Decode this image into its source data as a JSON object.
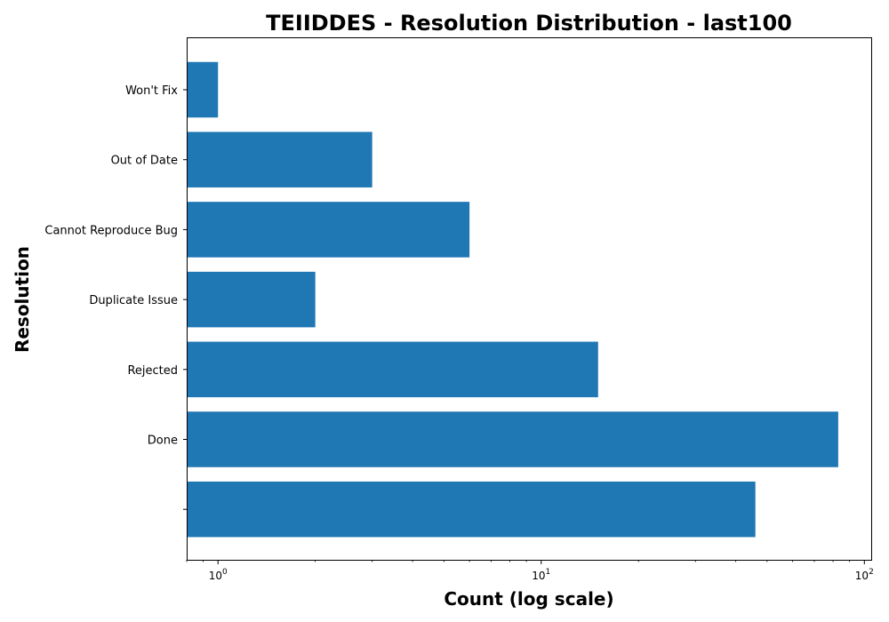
{
  "chart_data": {
    "type": "bar",
    "orientation": "horizontal",
    "title": "TEIIDDES - Resolution Distribution - last100",
    "xlabel": "Count (log scale)",
    "ylabel": "Resolution",
    "x_scale": "log",
    "xlim": [
      0.8,
      105
    ],
    "x_ticks": [
      {
        "value": 1,
        "base": "10",
        "exp": "0"
      },
      {
        "value": 10,
        "base": "10",
        "exp": "1"
      },
      {
        "value": 100,
        "base": "10",
        "exp": "2"
      }
    ],
    "categories": [
      "Won't Fix",
      "Out of Date",
      "Cannot Reproduce Bug",
      "Duplicate Issue",
      "Rejected",
      "Done",
      ""
    ],
    "values": [
      1,
      3,
      6,
      2,
      15,
      83,
      46
    ],
    "bar_color": "#1f77b4",
    "legend": false,
    "grid": false
  }
}
